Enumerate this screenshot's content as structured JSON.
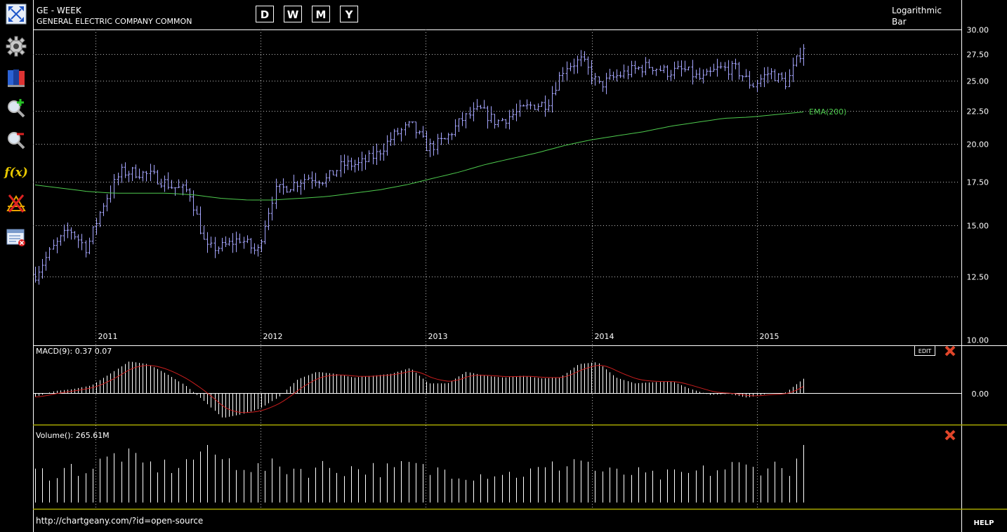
{
  "toolbar": {
    "items": [
      {
        "name": "fullscreen-icon"
      },
      {
        "name": "settings-gear-icon"
      },
      {
        "name": "books-icon"
      },
      {
        "name": "zoom-in-icon"
      },
      {
        "name": "zoom-out-icon"
      },
      {
        "name": "function-fx-icon"
      },
      {
        "name": "drawing-tools-icon"
      },
      {
        "name": "remove-indicators-icon"
      }
    ],
    "fx_label": "f(x)"
  },
  "header": {
    "symbol_title": "GE - WEEK",
    "company_name": "GENERAL ELECTRIC COMPANY COMMON",
    "timeframes": [
      "D",
      "W",
      "M",
      "Y"
    ],
    "scale_mode": "Logarithmic",
    "chart_style": "Bar"
  },
  "main_chart": {
    "price_ticks": [
      "30.00",
      "27.50",
      "25.00",
      "22.50",
      "20.00",
      "17.50",
      "15.00",
      "12.50",
      "10.00"
    ],
    "year_labels": [
      "2011",
      "2012",
      "2013",
      "2014",
      "2015"
    ],
    "ema_label": "EMA(200)",
    "bar_color": "#a6a6ff",
    "ema_color": "#4ecb4e"
  },
  "macd_panel": {
    "label": "MACD(9): 0.37 0.07",
    "zero_tick": "0.00",
    "edit_label": "EDIT",
    "signal_color": "#cc1e1e"
  },
  "volume_panel": {
    "label": "Volume(): 265.61M"
  },
  "footer": {
    "url": "http://chartgeany.com/?id=open-source",
    "help_label": "HELP"
  },
  "chart_data": {
    "type": "bar",
    "symbol": "GE",
    "interval": "week",
    "y_scale": "log",
    "ylim": [
      10.0,
      30.0
    ],
    "x_start": "2010-10",
    "x_end": "2015-04",
    "series": [
      {
        "name": "EMA(200)",
        "values": [
          17.3,
          17.1,
          16.9,
          16.8,
          16.8,
          16.8,
          16.7,
          16.5,
          16.4,
          16.4,
          16.5,
          16.6,
          16.8,
          17.0,
          17.3,
          17.7,
          18.1,
          18.6,
          19.0,
          19.4,
          19.9,
          20.3,
          20.6,
          20.9,
          21.3,
          21.6,
          21.9,
          22.0,
          22.2,
          22.4
        ]
      },
      {
        "name": "close",
        "values": [
          12.6,
          13.8,
          14.8,
          13.8,
          16.2,
          18.1,
          18.1,
          17.8,
          17.2,
          16.9,
          13.8,
          13.9,
          14.3,
          13.6,
          16.9,
          17.3,
          17.8,
          17.6,
          18.6,
          18.6,
          19.3,
          20.6,
          21.4,
          19.7,
          20.3,
          21.8,
          22.6,
          21.6,
          22.2,
          22.9,
          23.1,
          26.3,
          26.9,
          24.6,
          25.4,
          26.0,
          26.4,
          25.8,
          26.0,
          25.1,
          26.1,
          26.1,
          24.6,
          25.8,
          24.8,
          28.3
        ]
      },
      {
        "name": "MACD",
        "values": [
          -0.1,
          0.05,
          0.1,
          0.2,
          0.5,
          0.82,
          0.75,
          0.5,
          0.2,
          -0.2,
          -0.65,
          -0.55,
          -0.4,
          -0.1,
          0.35,
          0.55,
          0.5,
          0.4,
          0.45,
          0.5,
          0.65,
          0.25,
          0.25,
          0.55,
          0.45,
          0.4,
          0.45,
          0.38,
          0.4,
          0.75,
          0.8,
          0.4,
          0.25,
          0.28,
          0.3,
          0.1,
          -0.05,
          -0.02,
          -0.12,
          -0.02,
          0.0,
          0.37
        ]
      }
    ],
    "volume_M": [
      160,
      150,
      180,
      170,
      210,
      260,
      200,
      190,
      185,
      210,
      300,
      215,
      210,
      175,
      185,
      180,
      170,
      190,
      175,
      180,
      175,
      165,
      200,
      160,
      175,
      150,
      145,
      160,
      145,
      160,
      170,
      210,
      230,
      160,
      150,
      155,
      135,
      140,
      145,
      160,
      170,
      190,
      175,
      200,
      165,
      265.61
    ]
  }
}
